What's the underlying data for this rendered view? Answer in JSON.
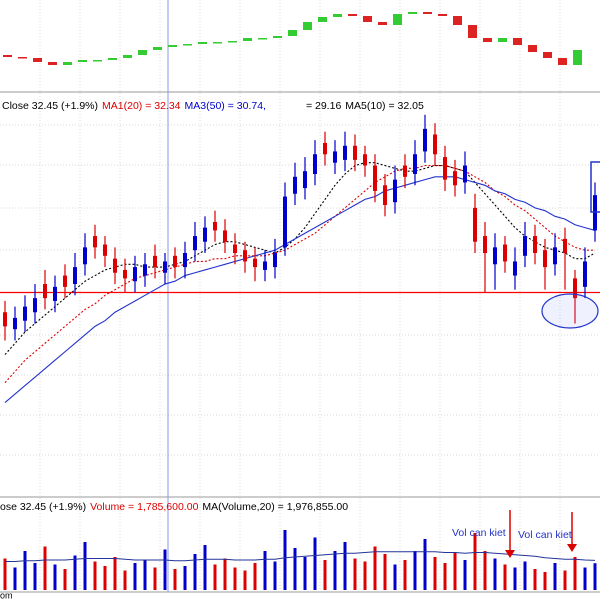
{
  "chart_data": [
    {
      "type": "mini-candles",
      "values": [
        35,
        33,
        32,
        28,
        25,
        28,
        30,
        30,
        32,
        35,
        40,
        43,
        45,
        46,
        48,
        48,
        49,
        52,
        52,
        54,
        60,
        68,
        73,
        76,
        74,
        68,
        65,
        76,
        78,
        76,
        74,
        65,
        52,
        48,
        52,
        45,
        38,
        32,
        25,
        40
      ],
      "ylim": [
        0,
        90
      ],
      "up_color": "#33cc33",
      "down_color": "#dd2222"
    },
    {
      "type": "candlestick",
      "legend": [
        {
          "text": "Close 32.45 (+1.9%)",
          "color": "#000000"
        },
        {
          "text": "MA1(20) = 32.34",
          "color": "#dd0000"
        },
        {
          "text": "MA3(50) = 30.74,",
          "color": "#0000cc"
        },
        {
          "text": "= 29.16",
          "color": "#000000"
        },
        {
          "text": "MA5(10) = 32.05",
          "color": "#000000"
        }
      ],
      "open": [
        28.3,
        27.7,
        28.0,
        28.3,
        29.3,
        28.7,
        29.6,
        29.3,
        30.0,
        31.0,
        30.7,
        30.2,
        29.8,
        29.4,
        29.6,
        30.3,
        29.7,
        30.3,
        29.9,
        30.5,
        30.8,
        31.5,
        31.2,
        30.7,
        30.5,
        30.2,
        29.8,
        29.9,
        30.6,
        32.5,
        32.7,
        33.2,
        34.3,
        33.6,
        33.7,
        34.2,
        33.9,
        33.5,
        32.8,
        32.2,
        33.5,
        33.2,
        34.0,
        34.6,
        33.8,
        33.3,
        32.9,
        32.0,
        31.0,
        30.0,
        30.7,
        29.6,
        30.3,
        31.0,
        30.5,
        30.0,
        30.9,
        29.5,
        29.2,
        31.2
      ],
      "high": [
        28.7,
        28.5,
        28.9,
        29.3,
        29.8,
        29.6,
        30.0,
        30.4,
        31.1,
        31.4,
        31.0,
        30.6,
        30.2,
        30.3,
        30.4,
        30.7,
        30.4,
        30.6,
        30.8,
        31.5,
        31.7,
        31.9,
        31.6,
        31.1,
        30.8,
        30.6,
        30.5,
        30.9,
        32.9,
        33.6,
        33.8,
        34.4,
        34.7,
        34.4,
        34.7,
        34.6,
        34.2,
        33.9,
        33.2,
        33.5,
        33.9,
        34.4,
        35.3,
        35.0,
        34.2,
        33.7,
        34.0,
        32.5,
        31.5,
        31.1,
        31.0,
        30.6,
        31.5,
        31.4,
        30.9,
        31.1,
        31.3,
        29.8,
        30.6,
        32.9
      ],
      "low": [
        27.3,
        27.3,
        27.6,
        27.9,
        28.4,
        28.3,
        28.8,
        28.9,
        29.6,
        30.2,
        29.9,
        29.3,
        29.0,
        29.0,
        29.2,
        29.5,
        29.3,
        29.5,
        29.5,
        30.1,
        30.4,
        30.8,
        30.4,
        30.0,
        29.7,
        29.4,
        29.4,
        29.5,
        30.3,
        32.1,
        32.3,
        32.8,
        33.5,
        33.2,
        33.3,
        33.3,
        33.1,
        32.2,
        31.7,
        31.8,
        32.7,
        32.8,
        33.6,
        33.5,
        32.6,
        32.4,
        32.5,
        30.4,
        29.0,
        29.1,
        29.7,
        29.1,
        29.9,
        30.0,
        29.1,
        29.6,
        29.1,
        27.9,
        28.8,
        30.8
      ],
      "close": [
        27.8,
        28.1,
        28.5,
        28.8,
        28.8,
        29.2,
        29.2,
        29.9,
        30.6,
        30.6,
        30.3,
        29.7,
        29.5,
        29.9,
        30.0,
        29.9,
        30.1,
        29.9,
        30.4,
        31.0,
        31.3,
        31.2,
        30.8,
        30.4,
        30.1,
        29.9,
        30.1,
        30.4,
        32.4,
        33.1,
        33.3,
        33.9,
        33.9,
        34.0,
        34.2,
        33.7,
        33.5,
        32.6,
        32.1,
        33.0,
        33.1,
        33.9,
        34.8,
        33.9,
        33.0,
        32.8,
        33.5,
        30.8,
        30.4,
        30.6,
        30.1,
        30.1,
        31.0,
        30.4,
        29.9,
        30.6,
        30.4,
        28.8,
        30.1,
        32.45
      ],
      "up_color": "#0000cc",
      "down_color": "#dd0000",
      "lines": [
        {
          "color": "#000000",
          "dash": true,
          "values": [
            26.8,
            27.2,
            27.6,
            27.9,
            28.2,
            28.5,
            28.8,
            29.1,
            29.4,
            29.6,
            29.8,
            29.9,
            30.0,
            30.0,
            29.9,
            29.9,
            29.9,
            30.0,
            30.1,
            30.3,
            30.5,
            30.7,
            30.8,
            30.8,
            30.7,
            30.6,
            30.5,
            30.4,
            30.6,
            30.9,
            31.3,
            31.8,
            32.3,
            32.8,
            33.2,
            33.5,
            33.6,
            33.6,
            33.5,
            33.4,
            33.3,
            33.3,
            33.4,
            33.5,
            33.5,
            33.4,
            33.3,
            32.9,
            32.5,
            32.1,
            31.7,
            31.3,
            31.0,
            30.8,
            30.6,
            30.5,
            30.4,
            30.2,
            30.2,
            30.4
          ]
        },
        {
          "color": "#dd0000",
          "dash": true,
          "values": [
            25.8,
            26.2,
            26.6,
            26.9,
            27.2,
            27.5,
            27.8,
            28.1,
            28.4,
            28.6,
            28.9,
            29.1,
            29.3,
            29.5,
            29.6,
            29.7,
            29.8,
            29.9,
            30.0,
            30.1,
            30.1,
            30.2,
            30.2,
            30.3,
            30.3,
            30.3,
            30.3,
            30.4,
            30.5,
            30.7,
            30.9,
            31.1,
            31.4,
            31.7,
            32.0,
            32.3,
            32.6,
            32.9,
            33.1,
            33.3,
            33.4,
            33.4,
            33.5,
            33.5,
            33.5,
            33.4,
            33.3,
            33.1,
            32.9,
            32.6,
            32.4,
            32.1,
            31.9,
            31.6,
            31.3,
            31.0,
            30.8,
            30.6,
            30.5,
            30.5
          ]
        },
        {
          "color": "#2233cc",
          "dash": false,
          "values": [
            25.1,
            25.4,
            25.7,
            26.0,
            26.3,
            26.6,
            26.9,
            27.2,
            27.5,
            27.8,
            28.0,
            28.3,
            28.5,
            28.7,
            28.9,
            29.1,
            29.3,
            29.4,
            29.6,
            29.7,
            29.8,
            29.9,
            30.0,
            30.1,
            30.2,
            30.3,
            30.4,
            30.5,
            30.7,
            30.9,
            31.1,
            31.3,
            31.5,
            31.7,
            31.9,
            32.1,
            32.3,
            32.4,
            32.6,
            32.7,
            32.8,
            32.9,
            33.0,
            33.1,
            33.1,
            33.1,
            33.0,
            32.9,
            32.8,
            32.6,
            32.5,
            32.3,
            32.2,
            32.0,
            31.9,
            31.7,
            31.6,
            31.4,
            31.3,
            31.2
          ]
        }
      ],
      "support": {
        "value": 29.0,
        "color": "#ff0000"
      },
      "ylim": [
        22,
        36
      ]
    },
    {
      "type": "volume",
      "legend": [
        {
          "text": "ose 32.45 (+1.9%)",
          "color": "#000000"
        },
        {
          "text": "Volume = 1,785,600.00",
          "color": "#dd0000"
        },
        {
          "text": "MA(Volume,20) = 1,976,855.00",
          "color": "#000000"
        }
      ],
      "values": [
        2100000,
        1500000,
        2600000,
        1800000,
        2900000,
        1700000,
        1400000,
        2300000,
        3200000,
        1900000,
        1600000,
        2200000,
        1300000,
        1800000,
        2000000,
        1500000,
        2700000,
        1400000,
        1600000,
        2400000,
        3000000,
        1700000,
        2100000,
        1500000,
        1300000,
        1800000,
        2600000,
        1900000,
        4000000,
        2800000,
        2200000,
        3500000,
        2000000,
        2600000,
        3200000,
        2100000,
        1900000,
        2900000,
        2400000,
        1700000,
        2000000,
        2600000,
        3400000,
        2200000,
        1800000,
        2500000,
        2000000,
        3800000,
        2600000,
        2100000,
        1700000,
        1500000,
        1900000,
        1400000,
        1200000,
        1800000,
        1300000,
        2200000,
        1500000,
        1785600
      ],
      "ma": {
        "color": "#223399",
        "values": [
          1900000,
          1900000,
          1950000,
          1950000,
          2000000,
          2000000,
          2000000,
          2050000,
          2100000,
          2100000,
          2100000,
          2100000,
          2050000,
          2000000,
          2000000,
          2000000,
          2000000,
          1950000,
          1950000,
          2000000,
          2050000,
          2050000,
          2050000,
          2000000,
          2000000,
          2000000,
          2050000,
          2050000,
          2150000,
          2200000,
          2250000,
          2300000,
          2350000,
          2400000,
          2450000,
          2450000,
          2500000,
          2550000,
          2550000,
          2550000,
          2550000,
          2550000,
          2550000,
          2550000,
          2500000,
          2500000,
          2450000,
          2500000,
          2500000,
          2450000,
          2400000,
          2350000,
          2300000,
          2250000,
          2150000,
          2100000,
          2050000,
          2050000,
          2000000,
          1976855
        ]
      },
      "annotations": [
        "Vol can kiet",
        "Vol can kiet"
      ],
      "ylim": [
        0,
        5000000
      ]
    }
  ],
  "footer": "om"
}
